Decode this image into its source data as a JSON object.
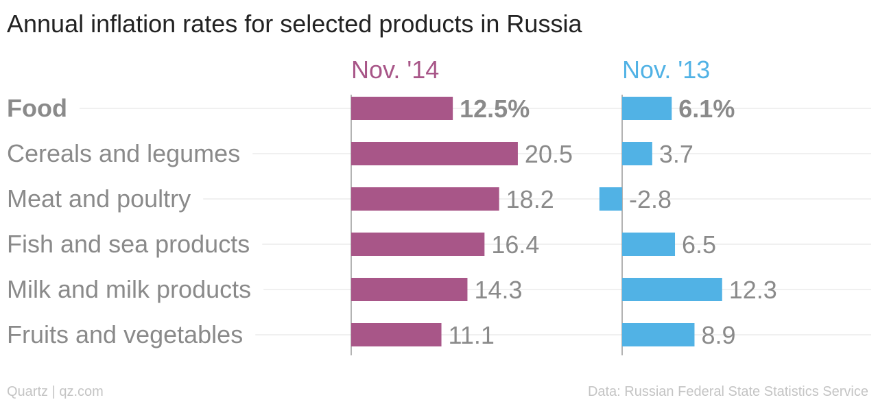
{
  "chart_data": {
    "type": "bar",
    "title": "Annual inflation rates for selected products in Russia",
    "categories": [
      "Food",
      "Cereals and legumes",
      "Meat and poultry",
      "Fish and sea products",
      "Milk and milk products",
      "Fruits and vegetables"
    ],
    "bold_categories": [
      "Food"
    ],
    "series": [
      {
        "name": "Nov. '14",
        "color": "#a85688",
        "values": [
          12.5,
          20.5,
          18.2,
          16.4,
          14.3,
          11.1
        ],
        "value_labels": [
          "12.5%",
          "20.5",
          "18.2",
          "16.4",
          "14.3",
          "11.1"
        ]
      },
      {
        "name": "Nov. '13",
        "color": "#51b2e5",
        "values": [
          6.1,
          3.7,
          -2.8,
          6.5,
          12.3,
          8.9
        ],
        "value_labels": [
          "6.1%",
          "3.7",
          "-2.8",
          "6.5",
          "12.3",
          "8.9"
        ]
      }
    ],
    "orientation": "horizontal",
    "xlabel": "",
    "ylabel": "",
    "grid": true,
    "legend": "series names shown as column headers above each bar group"
  },
  "footer": {
    "credit": "Quartz | qz.com",
    "source": "Data: Russian Federal State Statistics Service"
  }
}
